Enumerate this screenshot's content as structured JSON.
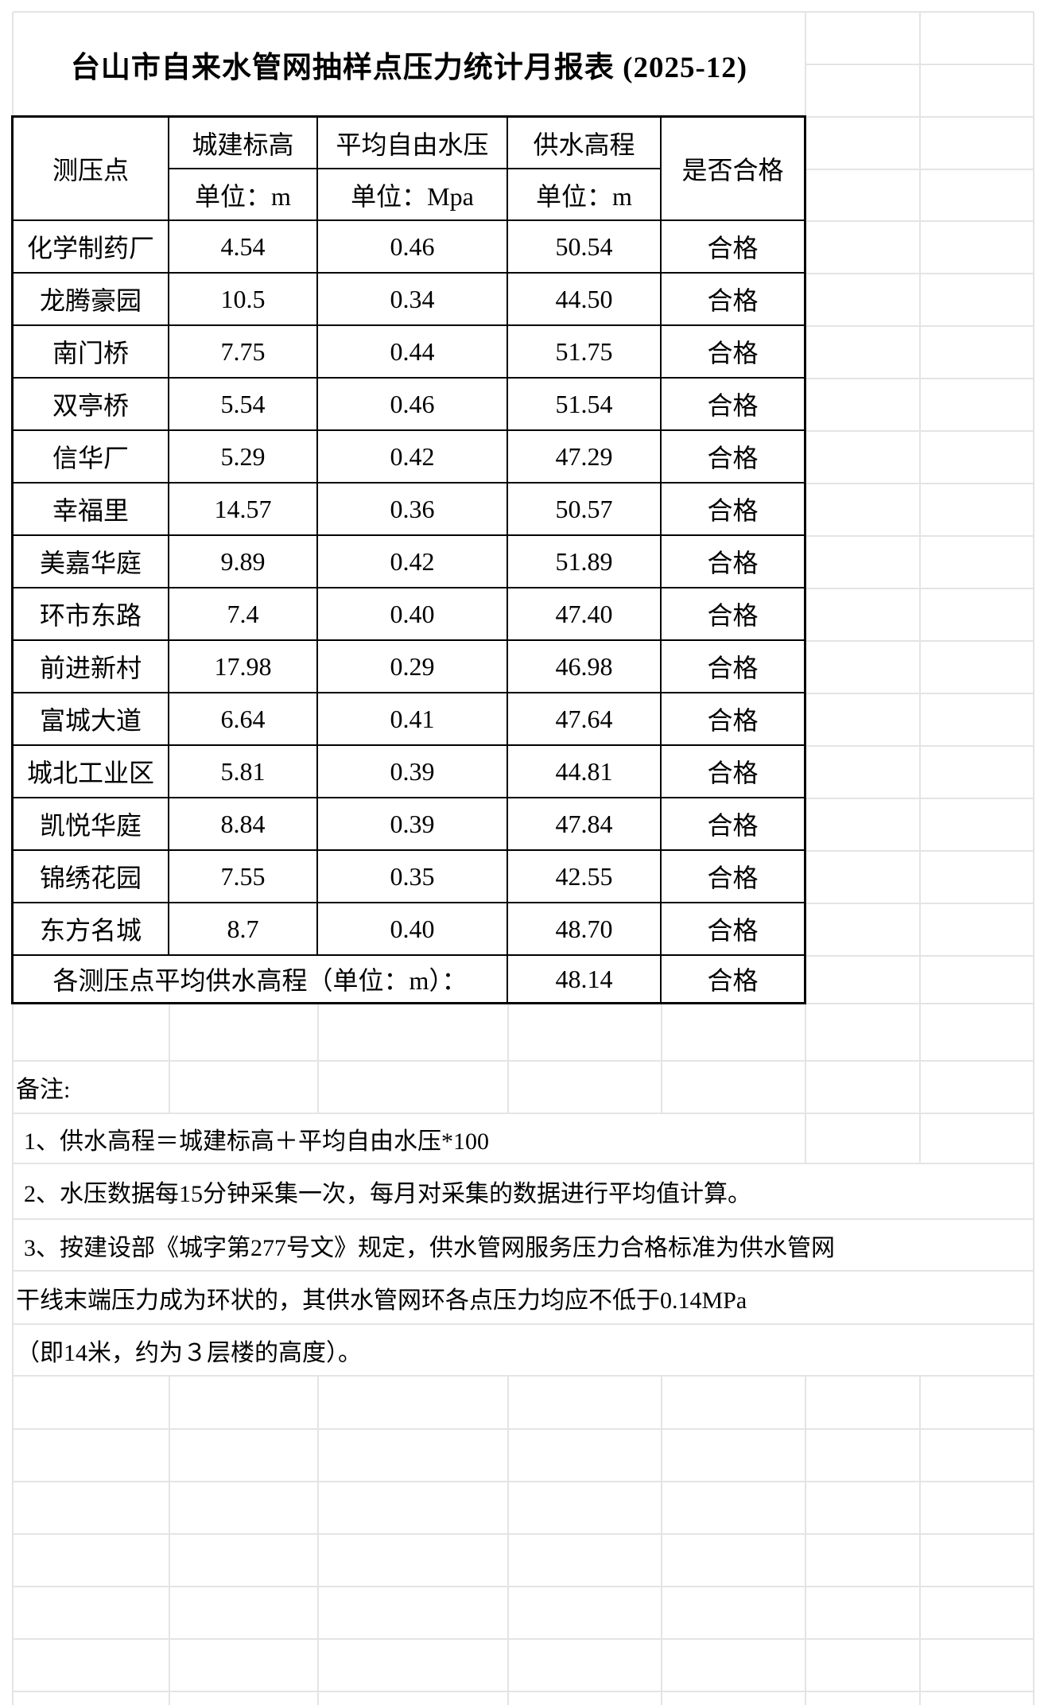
{
  "title": "台山市自来水管网抽样点压力统计月报表 (2025-12)",
  "table": {
    "header": {
      "col_point": "测压点",
      "col_elevation": "城建标高",
      "col_pressure": "平均自由水压",
      "col_supply": "供水高程",
      "col_qualified": "是否合格",
      "unit_elevation": "单位：m",
      "unit_pressure": "单位：Mpa",
      "unit_supply": "单位：m"
    },
    "rows": [
      {
        "name": "化学制药厂",
        "elevation": "4.54",
        "pressure": "0.46",
        "supply": "50.54",
        "status": "合格"
      },
      {
        "name": "龙腾豪园",
        "elevation": "10.5",
        "pressure": "0.34",
        "supply": "44.50",
        "status": "合格"
      },
      {
        "name": "南门桥",
        "elevation": "7.75",
        "pressure": "0.44",
        "supply": "51.75",
        "status": "合格"
      },
      {
        "name": "双亭桥",
        "elevation": "5.54",
        "pressure": "0.46",
        "supply": "51.54",
        "status": "合格"
      },
      {
        "name": "信华厂",
        "elevation": "5.29",
        "pressure": "0.42",
        "supply": "47.29",
        "status": "合格"
      },
      {
        "name": "幸福里",
        "elevation": "14.57",
        "pressure": "0.36",
        "supply": "50.57",
        "status": "合格"
      },
      {
        "name": "美嘉华庭",
        "elevation": "9.89",
        "pressure": "0.42",
        "supply": "51.89",
        "status": "合格"
      },
      {
        "name": "环市东路",
        "elevation": "7.4",
        "pressure": "0.40",
        "supply": "47.40",
        "status": "合格"
      },
      {
        "name": "前进新村",
        "elevation": "17.98",
        "pressure": "0.29",
        "supply": "46.98",
        "status": "合格"
      },
      {
        "name": "富城大道",
        "elevation": "6.64",
        "pressure": "0.41",
        "supply": "47.64",
        "status": "合格"
      },
      {
        "name": "城北工业区",
        "elevation": "5.81",
        "pressure": "0.39",
        "supply": "44.81",
        "status": "合格"
      },
      {
        "name": "凯悦华庭",
        "elevation": "8.84",
        "pressure": "0.39",
        "supply": "47.84",
        "status": "合格"
      },
      {
        "name": "锦绣花园",
        "elevation": "7.55",
        "pressure": "0.35",
        "supply": "42.55",
        "status": "合格"
      },
      {
        "name": "东方名城",
        "elevation": "8.7",
        "pressure": "0.40",
        "supply": "48.70",
        "status": "合格"
      }
    ],
    "summary": {
      "label": "各测压点平均供水高程（单位：m）：",
      "value": "48.14",
      "status": "合格"
    }
  },
  "remarks": {
    "label": "备注:",
    "lines": [
      "1、供水高程＝城建标高＋平均自由水压*100",
      "2、水压数据每15分钟采集一次，每月对采集的数据进行平均值计算。",
      "3、按建设部《城字第277号文》规定，供水管网服务压力合格标准为供水管网",
      "干线末端压力成为环状的，其供水管网环各点压力均应不低于0.14MPa",
      "（即14米，约为３层楼的高度）。"
    ]
  },
  "colors": {
    "background": "#ffffff",
    "grid_line": "#e4e4e4",
    "table_border": "#000000",
    "text": "#000000"
  }
}
